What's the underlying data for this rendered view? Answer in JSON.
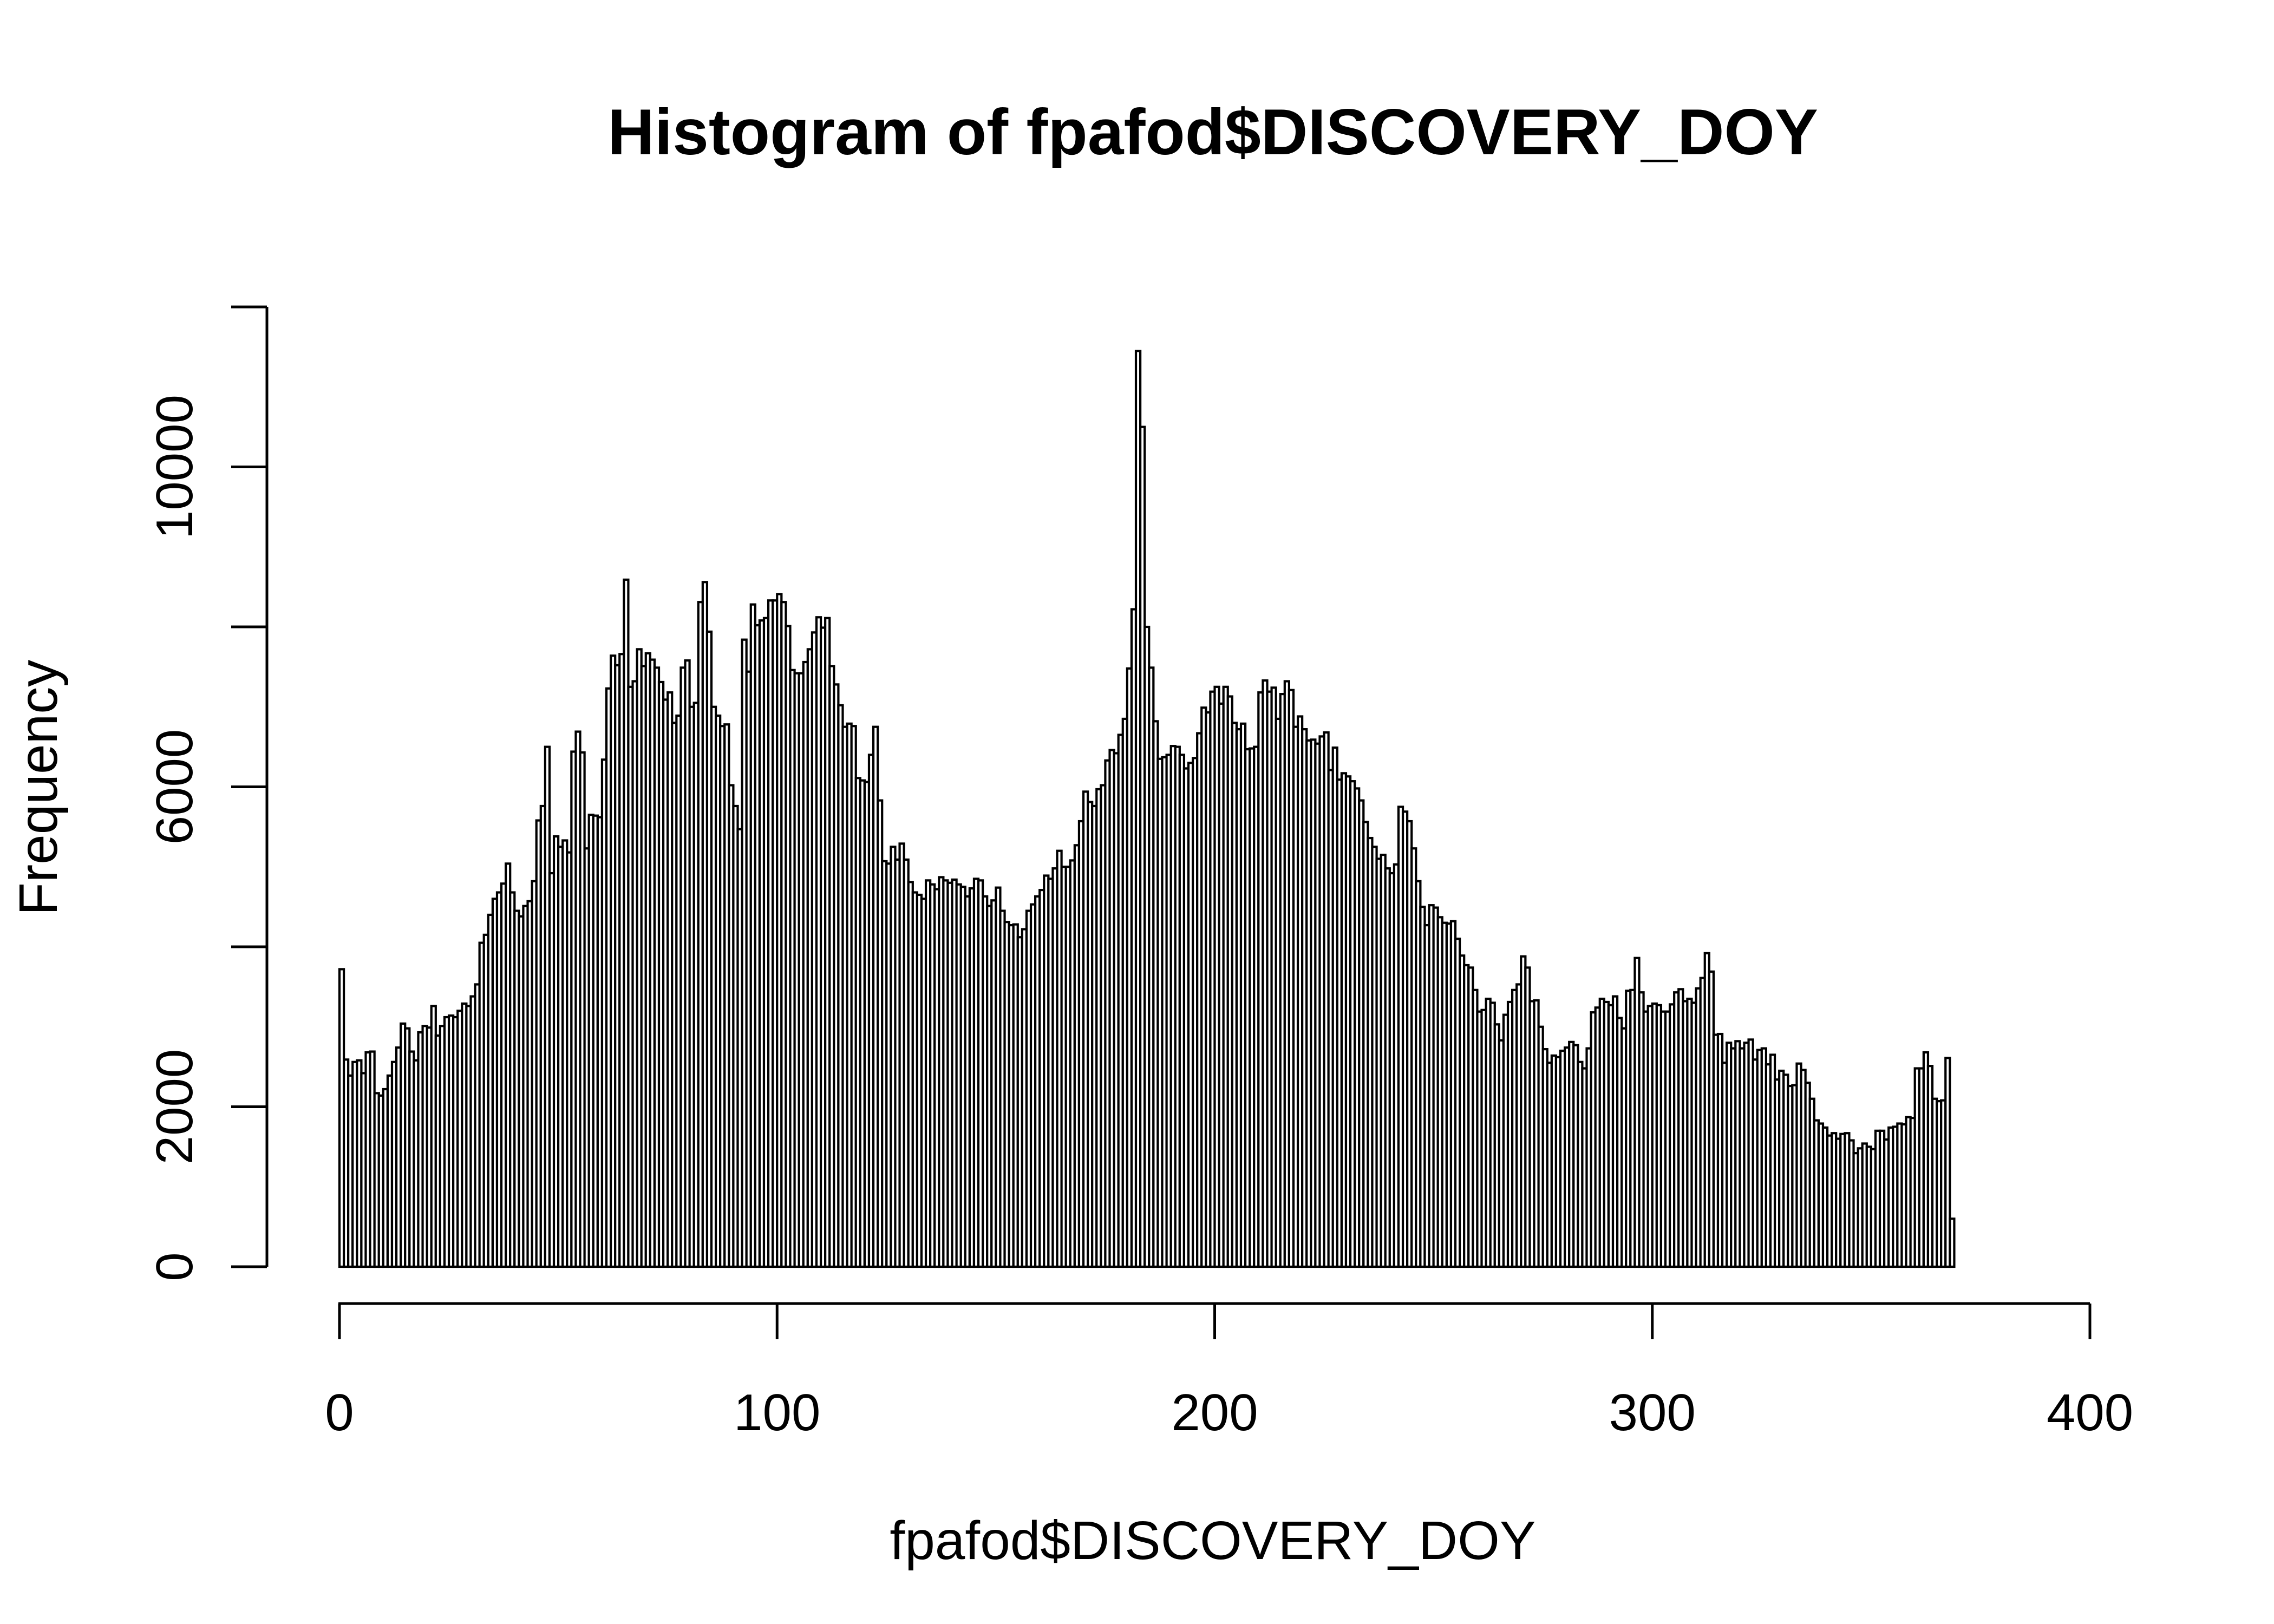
{
  "chart_data": {
    "type": "bar",
    "title": "Histogram of fpafod$DISCOVERY_DOY",
    "xlabel": "fpafod$DISCOVERY_DOY",
    "ylabel": "Frequency",
    "xlim": [
      0,
      400
    ],
    "ylim": [
      0,
      12000
    ],
    "x_ticks": [
      0,
      100,
      200,
      300,
      400
    ],
    "y_ticks": [
      0,
      2000,
      6000,
      10000
    ],
    "bin_start": 0,
    "bin_width": 1,
    "values": [
      3720,
      2590,
      2390,
      2560,
      2580,
      2420,
      2680,
      2690,
      2170,
      2140,
      2220,
      2390,
      2560,
      2740,
      3040,
      2980,
      2690,
      2580,
      2930,
      3010,
      2990,
      3260,
      2890,
      3010,
      3120,
      3140,
      3120,
      3200,
      3290,
      3260,
      3380,
      3530,
      4050,
      4150,
      4400,
      4600,
      4680,
      4790,
      5040,
      4680,
      4450,
      4380,
      4510,
      4570,
      4820,
      5580,
      5760,
      6500,
      4920,
      5380,
      5250,
      5330,
      5180,
      6440,
      6690,
      6430,
      5230,
      5650,
      5640,
      5620,
      6340,
      7230,
      7640,
      7520,
      7660,
      8590,
      7250,
      7320,
      7720,
      7510,
      7670,
      7590,
      7490,
      7310,
      7090,
      7180,
      6800,
      6890,
      7490,
      7580,
      7000,
      7050,
      8310,
      8560,
      7940,
      7000,
      6890,
      6760,
      6780,
      6020,
      5760,
      5470,
      7840,
      7440,
      8280,
      8020,
      8080,
      8110,
      8330,
      8330,
      8410,
      8310,
      8010,
      7460,
      7420,
      7420,
      7560,
      7720,
      7930,
      8120,
      7990,
      8110,
      7510,
      7280,
      7020,
      6750,
      6790,
      6760,
      6110,
      6080,
      6060,
      6400,
      6750,
      5830,
      5070,
      5040,
      5250,
      5090,
      5290,
      5090,
      4810,
      4680,
      4650,
      4600,
      4830,
      4780,
      4720,
      4870,
      4830,
      4800,
      4840,
      4780,
      4750,
      4630,
      4730,
      4850,
      4830,
      4630,
      4510,
      4580,
      4740,
      4450,
      4310,
      4270,
      4280,
      4120,
      4220,
      4450,
      4530,
      4630,
      4710,
      4890,
      4850,
      4980,
      5200,
      5000,
      5000,
      5080,
      5270,
      5570,
      5940,
      5810,
      5760,
      5970,
      6020,
      6330,
      6460,
      6420,
      6650,
      6850,
      7480,
      8220,
      11450,
      10500,
      8000,
      7490,
      6820,
      6350,
      6370,
      6400,
      6510,
      6500,
      6400,
      6230,
      6300,
      6360,
      6670,
      6990,
      6930,
      7190,
      7250,
      7040,
      7250,
      7130,
      6800,
      6720,
      6790,
      6470,
      6480,
      6500,
      7180,
      7330,
      7190,
      7240,
      6850,
      7160,
      7320,
      7210,
      6750,
      6880,
      6720,
      6580,
      6590,
      6540,
      6630,
      6680,
      6210,
      6490,
      6090,
      6170,
      6130,
      6070,
      5980,
      5830,
      5560,
      5360,
      5250,
      5100,
      5150,
      4980,
      4920,
      5030,
      5750,
      5690,
      5570,
      5230,
      4820,
      4500,
      4270,
      4520,
      4490,
      4370,
      4300,
      4290,
      4320,
      4100,
      3890,
      3770,
      3740,
      3460,
      3190,
      3210,
      3350,
      3300,
      3030,
      2830,
      3150,
      3310,
      3460,
      3530,
      3880,
      3740,
      3320,
      3330,
      3000,
      2720,
      2550,
      2640,
      2620,
      2700,
      2740,
      2810,
      2770,
      2560,
      2480,
      2730,
      3180,
      3240,
      3350,
      3310,
      3270,
      3380,
      3110,
      2980,
      3450,
      3460,
      3860,
      3430,
      3190,
      3260,
      3290,
      3270,
      3190,
      3190,
      3280,
      3430,
      3470,
      3320,
      3350,
      3300,
      3480,
      3610,
      3920,
      3690,
      2900,
      2910,
      2550,
      2800,
      2730,
      2820,
      2730,
      2800,
      2840,
      2590,
      2710,
      2730,
      2530,
      2650,
      2340,
      2450,
      2400,
      2260,
      2270,
      2540,
      2460,
      2300,
      2100,
      1830,
      1790,
      1740,
      1640,
      1670,
      1600,
      1660,
      1670,
      1580,
      1420,
      1480,
      1540,
      1500,
      1470,
      1700,
      1700,
      1590,
      1740,
      1750,
      1790,
      1780,
      1870,
      1860,
      2480,
      2480,
      2680,
      2510,
      2100,
      2070,
      2080,
      2610,
      600
    ]
  }
}
